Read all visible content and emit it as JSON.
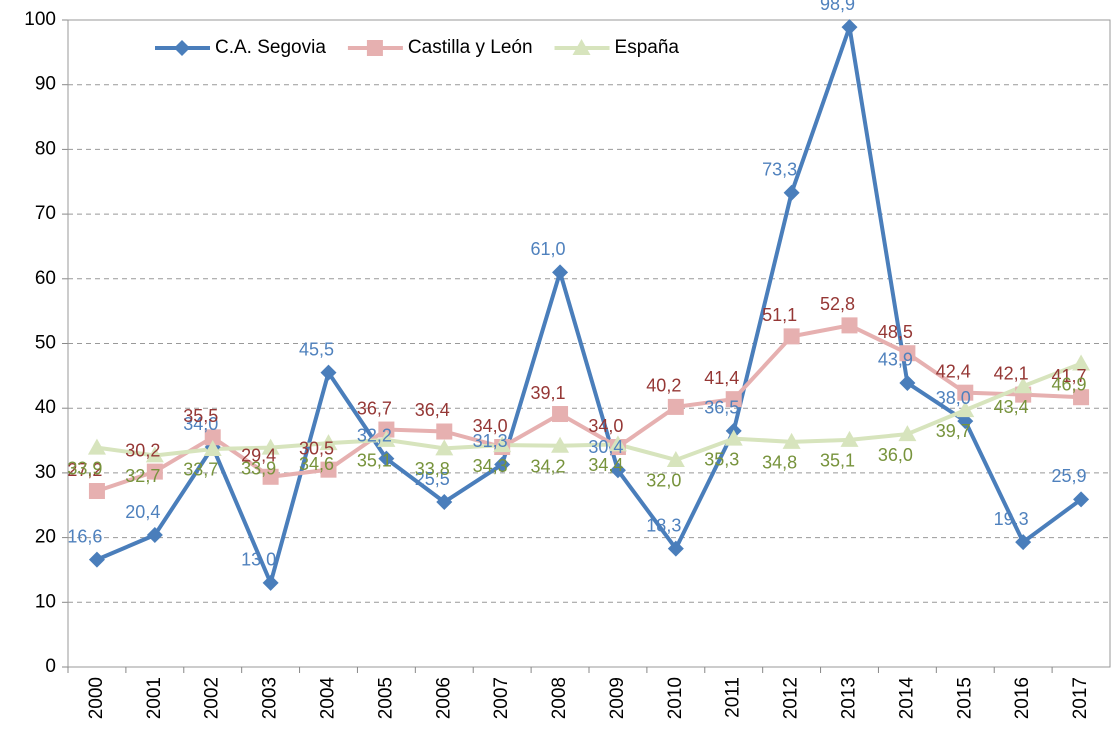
{
  "chart_data": {
    "type": "line",
    "categories": [
      "2000",
      "2001",
      "2002",
      "2003",
      "2004",
      "2005",
      "2006",
      "2007",
      "2008",
      "2009",
      "2010",
      "2011",
      "2012",
      "2013",
      "2014",
      "2015",
      "2016",
      "2017"
    ],
    "series": [
      {
        "name": "C.A. Segovia",
        "color": "#4a7ebb",
        "label_color": "#4f81bd",
        "marker": "diamond",
        "values": [
          16.6,
          20.4,
          34.0,
          13.0,
          45.5,
          32.2,
          25.5,
          31.3,
          61.0,
          30.4,
          18.3,
          36.5,
          73.3,
          98.9,
          43.9,
          38.0,
          19.3,
          25.9
        ],
        "value_labels": [
          "16,6",
          "20,4",
          "34,0",
          "13,0",
          "45,5",
          "32,2",
          "25,5",
          "31,3",
          "61,0",
          "30,4",
          "18,3",
          "36,5",
          "73,3",
          "98,9",
          "43,9",
          "38,0",
          "19,3",
          "25,9"
        ]
      },
      {
        "name": "Castilla y León",
        "color": "#e6b0b0",
        "label_color": "#953735",
        "marker": "square",
        "values": [
          27.2,
          30.2,
          35.5,
          29.4,
          30.5,
          36.7,
          36.4,
          34.0,
          39.1,
          34.0,
          40.2,
          41.4,
          51.1,
          52.8,
          48.5,
          42.4,
          42.1,
          41.7
        ],
        "value_labels": [
          "27,2",
          "30,2",
          "35,5",
          "29,4",
          "30,5",
          "36,7",
          "36,4",
          "34,0",
          "39,1",
          "34,0",
          "40,2",
          "41,4",
          "51,1",
          "52,8",
          "48,5",
          "42,4",
          "42,1",
          "41,7"
        ]
      },
      {
        "name": "España",
        "color": "#d7e4bd",
        "label_color": "#77933c",
        "marker": "triangle",
        "values": [
          33.9,
          32.7,
          33.7,
          33.9,
          34.6,
          35.1,
          33.8,
          34.3,
          34.2,
          34.4,
          32.0,
          35.3,
          34.8,
          35.1,
          36.0,
          39.7,
          43.4,
          46.9
        ],
        "value_labels": [
          "33,9",
          "32,7",
          "33,7",
          "33,9",
          "34,6",
          "35,1",
          "33,8",
          "34,3",
          "34,2",
          "34,4",
          "32,0",
          "35,3",
          "34,8",
          "35,1",
          "36,0",
          "39,7",
          "43,4",
          "46,9"
        ]
      }
    ],
    "ylim": [
      0,
      100
    ],
    "yticks": [
      0,
      10,
      20,
      30,
      40,
      50,
      60,
      70,
      80,
      90,
      100
    ],
    "grid": true,
    "legend": "top"
  }
}
